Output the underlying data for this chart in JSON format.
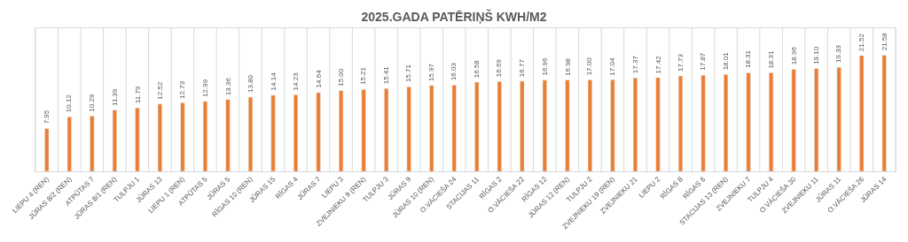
{
  "chart_data": {
    "type": "bar",
    "title": "2025.GADA PATĒRIŅŠ KWH/M2",
    "categories": [
      "LIEPU 4 (REN)",
      "JŪRAS 8/2 (REN)",
      "ATPŪTAS 7",
      "JŪRAS 8/1 (REN)",
      "TULPJU 1",
      "JŪRAS 13",
      "LIEPU 1 (REN)",
      "ATPŪTAS 5",
      "JŪRAS 5",
      "RĪGAS 10 (REN)",
      "JŪRAS 15",
      "RĪGAS 4",
      "JŪRAS 7",
      "LIEPU 3",
      "ZVEJNIEKU 9 (REN)",
      "TULPJU 3",
      "JŪRAS 9",
      "JŪRAS 10 (REN)",
      "O.VĀCIEŠA 24",
      "STACIJAS 11",
      "RĪGAS 2",
      "O.VĀCIEŠA 22",
      "RĪGAS 12",
      "JŪRAS 12 (REN)",
      "TULPJU 2",
      "ZVEJNIEKU 19 (REN)",
      "ZVEJNIEKU 21",
      "LIEPU 2",
      "RĪGAS 8",
      "RĪGAS 6",
      "STACIJAS 13 (REN)",
      "ZVEJNIEKU 7",
      "TULPJU 4",
      "O.VĀCIEŠA 30",
      "ZVEJNIEKU 11",
      "JŪRAS 11",
      "O.VĀCIEŠA 26",
      "JŪRAS 14"
    ],
    "values": [
      7.95,
      10.12,
      10.29,
      11.39,
      11.79,
      12.52,
      12.73,
      12.99,
      13.36,
      13.8,
      14.14,
      14.23,
      14.64,
      15.0,
      15.21,
      15.41,
      15.71,
      15.97,
      16.03,
      16.58,
      16.69,
      16.77,
      16.96,
      16.98,
      17.0,
      17.04,
      17.37,
      17.42,
      17.73,
      17.87,
      18.01,
      18.31,
      18.31,
      18.96,
      19.1,
      19.33,
      21.52,
      21.58
    ],
    "value_labels": [
      "7.95",
      "10.12",
      "10.29",
      "11.39",
      "11.79",
      "12.52",
      "12.73",
      "12.99",
      "13.36",
      "13.80",
      "14.14",
      "14.23",
      "14.64",
      "15.00",
      "15.21",
      "15.41",
      "15.71",
      "15.97",
      "16.03",
      "16.58",
      "16.69",
      "16.77",
      "16.96",
      "16.98",
      "17.00",
      "17.04",
      "17.37",
      "17.42",
      "17.73",
      "17.87",
      "18.01",
      "18.31",
      "18.31",
      "18.96",
      "19.10",
      "19.33",
      "21.52",
      "21.58"
    ],
    "color": "#ed7d31",
    "ylim": [
      0,
      26.6
    ],
    "tick_labels": "x",
    "grid": "x",
    "legend": false
  }
}
